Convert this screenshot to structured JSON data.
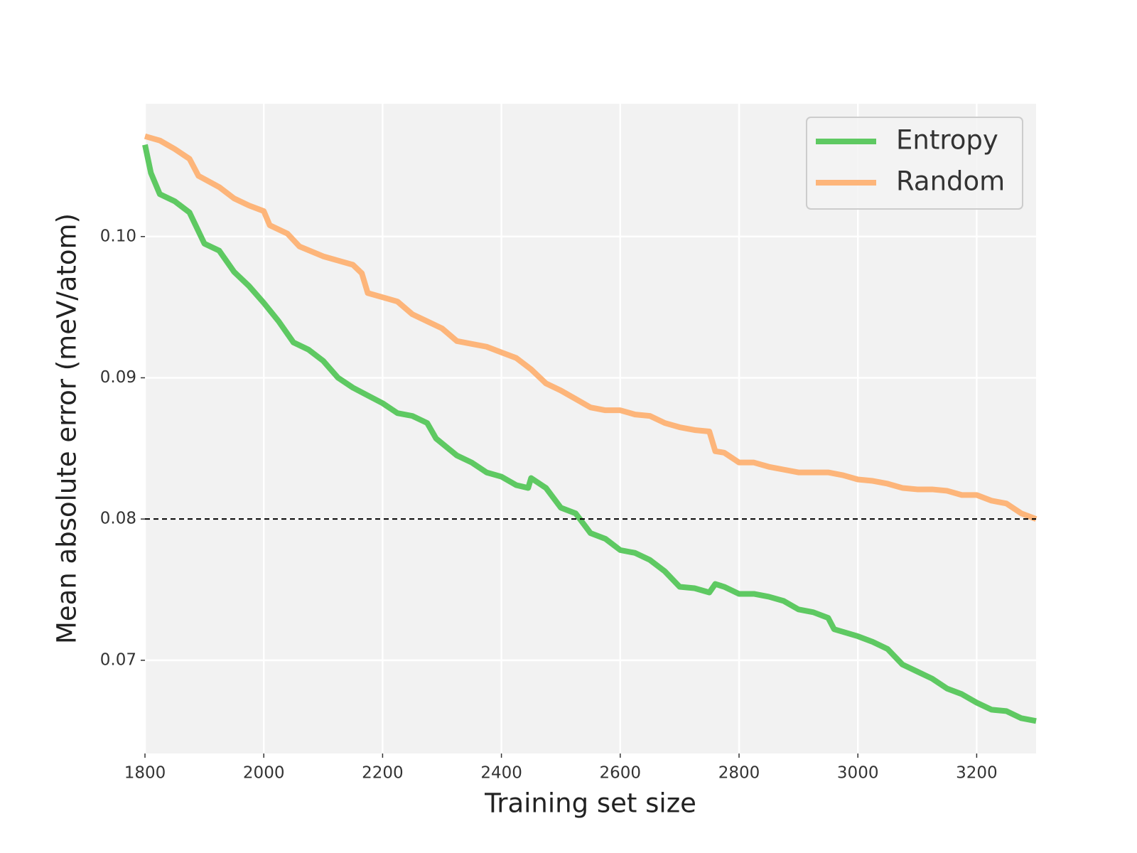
{
  "chart_data": {
    "type": "line",
    "xlabel": "Training set size",
    "ylabel": "Mean absolute error (meV/atom)",
    "xlim": [
      1800,
      3300
    ],
    "ylim": [
      0.0634,
      0.1094
    ],
    "xticks": [
      1800,
      2000,
      2200,
      2400,
      2600,
      2800,
      3000,
      3200
    ],
    "yticks": [
      0.07,
      0.08,
      0.09,
      {
        "value": 0.1,
        "label": "0.10"
      }
    ],
    "grid": true,
    "legend": "upper right",
    "hline": 0.08,
    "series": [
      {
        "name": "Entropy",
        "color": "#5ec962",
        "x": [
          1800,
          1810,
          1825,
          1850,
          1875,
          1900,
          1925,
          1950,
          1975,
          2000,
          2025,
          2050,
          2075,
          2100,
          2125,
          2150,
          2200,
          2225,
          2250,
          2275,
          2290,
          2325,
          2350,
          2375,
          2400,
          2425,
          2445,
          2450,
          2475,
          2500,
          2525,
          2550,
          2575,
          2600,
          2625,
          2650,
          2675,
          2700,
          2725,
          2750,
          2760,
          2775,
          2800,
          2825,
          2850,
          2875,
          2900,
          2925,
          2950,
          2960,
          3000,
          3025,
          3050,
          3075,
          3100,
          3125,
          3150,
          3175,
          3200,
          3225,
          3250,
          3275,
          3300
        ],
        "values": [
          0.1065,
          0.1045,
          0.103,
          0.1025,
          0.1017,
          0.0995,
          0.099,
          0.0975,
          0.0965,
          0.0953,
          0.094,
          0.0925,
          0.092,
          0.0912,
          0.09,
          0.0893,
          0.0882,
          0.0875,
          0.0873,
          0.0868,
          0.0857,
          0.0845,
          0.084,
          0.0833,
          0.083,
          0.0824,
          0.0822,
          0.0829,
          0.0822,
          0.0808,
          0.0804,
          0.079,
          0.0786,
          0.0778,
          0.0776,
          0.0771,
          0.0763,
          0.0752,
          0.0751,
          0.0748,
          0.0754,
          0.0752,
          0.0747,
          0.0747,
          0.0745,
          0.0742,
          0.0736,
          0.0734,
          0.073,
          0.0722,
          0.0717,
          0.0713,
          0.0708,
          0.0697,
          0.0692,
          0.0687,
          0.068,
          0.0676,
          0.067,
          0.0665,
          0.0664,
          0.0659,
          0.0657
        ]
      },
      {
        "name": "Random",
        "color": "#fdb57a",
        "x": [
          1800,
          1825,
          1850,
          1875,
          1890,
          1925,
          1950,
          1975,
          2000,
          2010,
          2040,
          2060,
          2100,
          2125,
          2150,
          2165,
          2175,
          2200,
          2225,
          2250,
          2275,
          2300,
          2325,
          2350,
          2375,
          2400,
          2425,
          2450,
          2475,
          2500,
          2525,
          2550,
          2575,
          2600,
          2625,
          2650,
          2675,
          2700,
          2725,
          2750,
          2760,
          2775,
          2800,
          2825,
          2850,
          2875,
          2900,
          2925,
          2950,
          2975,
          3000,
          3025,
          3050,
          3075,
          3100,
          3125,
          3150,
          3175,
          3200,
          3225,
          3250,
          3275,
          3300
        ],
        "values": [
          0.1071,
          0.1068,
          0.1062,
          0.1055,
          0.1043,
          0.1035,
          0.1027,
          0.1022,
          0.1018,
          0.1008,
          0.1002,
          0.0993,
          0.0986,
          0.0983,
          0.098,
          0.0974,
          0.096,
          0.0957,
          0.0954,
          0.0945,
          0.094,
          0.0935,
          0.0926,
          0.0924,
          0.0922,
          0.0918,
          0.0914,
          0.0906,
          0.0896,
          0.0891,
          0.0885,
          0.0879,
          0.0877,
          0.0877,
          0.0874,
          0.0873,
          0.0868,
          0.0865,
          0.0863,
          0.0862,
          0.0848,
          0.0847,
          0.084,
          0.084,
          0.0837,
          0.0835,
          0.0833,
          0.0833,
          0.0833,
          0.0831,
          0.0828,
          0.0827,
          0.0825,
          0.0822,
          0.0821,
          0.0821,
          0.082,
          0.0817,
          0.0817,
          0.0813,
          0.0811,
          0.0804,
          0.08
        ]
      }
    ]
  }
}
